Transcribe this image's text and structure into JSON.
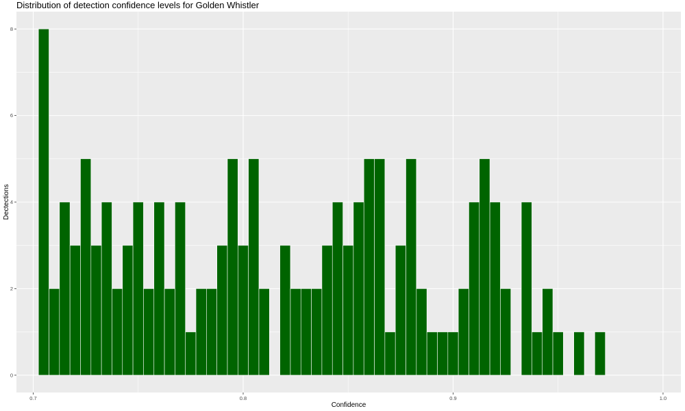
{
  "chart_data": {
    "type": "bar",
    "title": "Distribution of detection confidence levels for Golden Whistler",
    "xlabel": "Confidence",
    "ylabel": "Dectections",
    "xlim": [
      0.692,
      1.0085
    ],
    "ylim": [
      -0.4,
      8.4
    ],
    "xticks": [
      0.7,
      0.8,
      0.9,
      1.0
    ],
    "xtick_labels": [
      "0.7",
      "0.8",
      "0.9",
      "1.0"
    ],
    "yticks": [
      0,
      2,
      4,
      6,
      8
    ],
    "ytick_labels": [
      "0",
      "2",
      "4",
      "6",
      "8"
    ],
    "bin_width": 0.005,
    "x": [
      0.705,
      0.71,
      0.715,
      0.72,
      0.725,
      0.73,
      0.735,
      0.74,
      0.745,
      0.75,
      0.755,
      0.76,
      0.765,
      0.77,
      0.775,
      0.78,
      0.785,
      0.79,
      0.795,
      0.8,
      0.805,
      0.81,
      0.815,
      0.82,
      0.825,
      0.83,
      0.835,
      0.84,
      0.845,
      0.85,
      0.855,
      0.86,
      0.865,
      0.87,
      0.875,
      0.88,
      0.885,
      0.89,
      0.895,
      0.9,
      0.905,
      0.91,
      0.915,
      0.92,
      0.925,
      0.93,
      0.935,
      0.94,
      0.945,
      0.95,
      0.955,
      0.96,
      0.965,
      0.97
    ],
    "values": [
      8,
      2,
      4,
      3,
      5,
      3,
      4,
      2,
      3,
      4,
      2,
      4,
      2,
      4,
      1,
      2,
      2,
      3,
      5,
      3,
      5,
      2,
      0,
      3,
      2,
      2,
      2,
      3,
      4,
      3,
      4,
      5,
      5,
      1,
      3,
      5,
      2,
      1,
      1,
      1,
      2,
      4,
      5,
      4,
      2,
      0,
      4,
      1,
      2,
      1,
      0,
      1,
      0,
      1
    ],
    "bar_color": "#006400",
    "bar_outline": "#ffffff",
    "panel_background": "#ebebeb",
    "gridline_color": "#ffffff",
    "grid": true,
    "legend": "none"
  }
}
